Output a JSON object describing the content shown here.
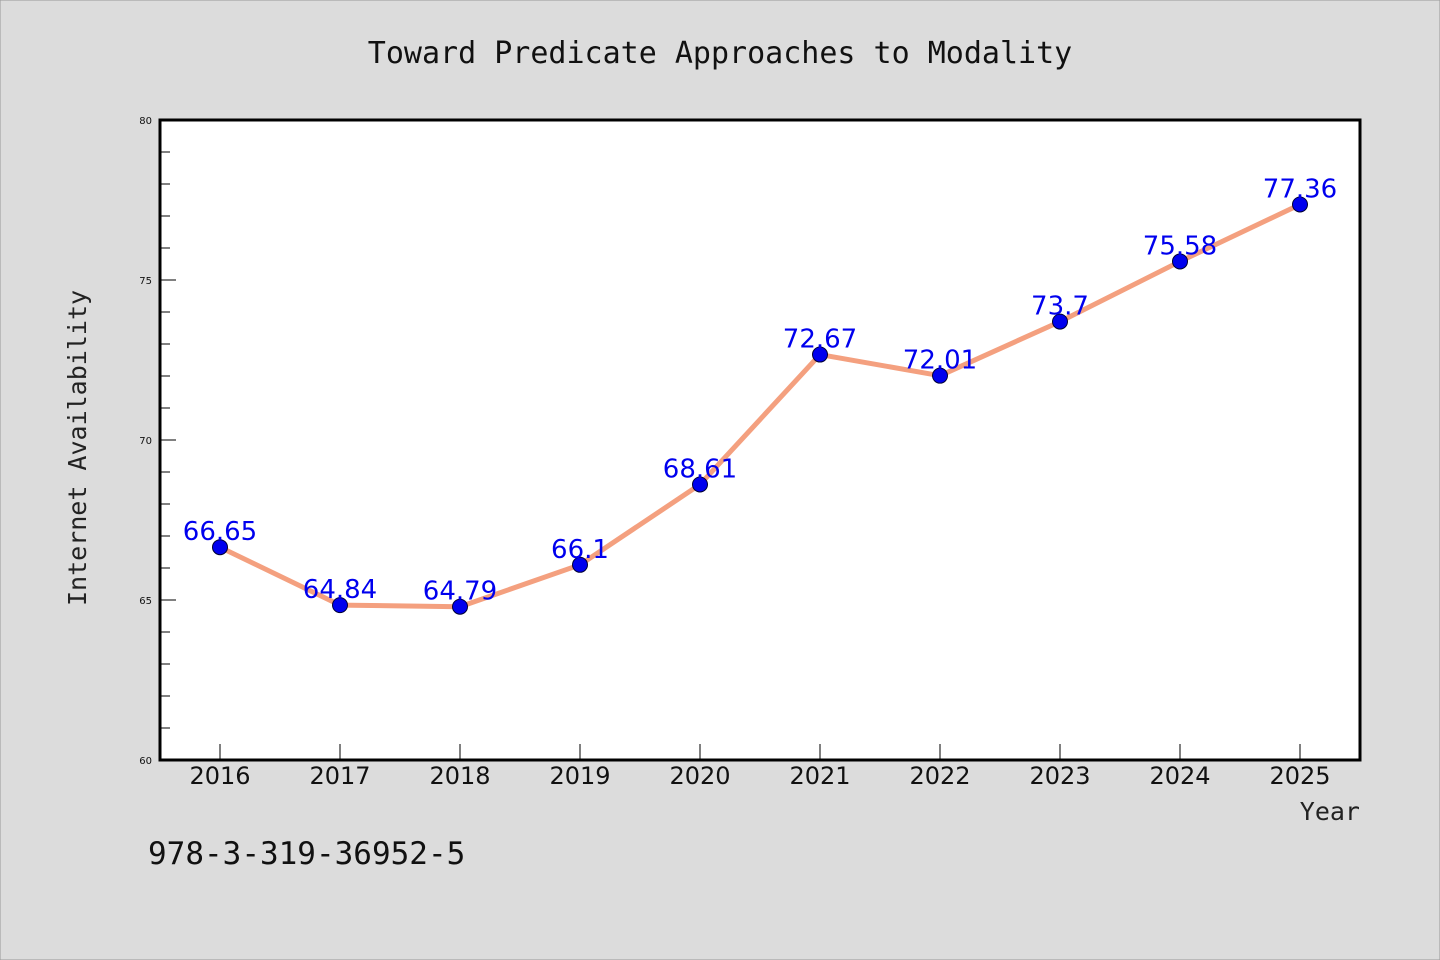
{
  "chart_data": {
    "type": "line",
    "title": "Toward Predicate Approaches to Modality",
    "xlabel": "Year",
    "ylabel": "Internet Availability",
    "x": [
      "2016",
      "2017",
      "2018",
      "2019",
      "2020",
      "2021",
      "2022",
      "2023",
      "2024",
      "2025"
    ],
    "series": [
      {
        "values": [
          66.65,
          64.84,
          64.79,
          66.1,
          68.61,
          72.67,
          72.01,
          73.7,
          75.58,
          77.36
        ],
        "labels": [
          "66.65",
          "64.84",
          "64.79",
          "66.1",
          "68.61",
          "72.67",
          "72.01",
          "73.7",
          "75.58",
          "77.36"
        ]
      }
    ],
    "ylim": [
      60,
      80
    ],
    "y_ticks": [
      "60",
      "65",
      "70",
      "75",
      "80"
    ],
    "grid": false,
    "legend": "none"
  },
  "footer": {
    "isbn": "978-3-319-36952-5"
  },
  "colors": {
    "background": "#dcdcdc",
    "plot_background": "#ffffff",
    "line": "#f4a07f",
    "marker": "#0000ee",
    "label": "#0000ee",
    "frame": "#000000"
  }
}
